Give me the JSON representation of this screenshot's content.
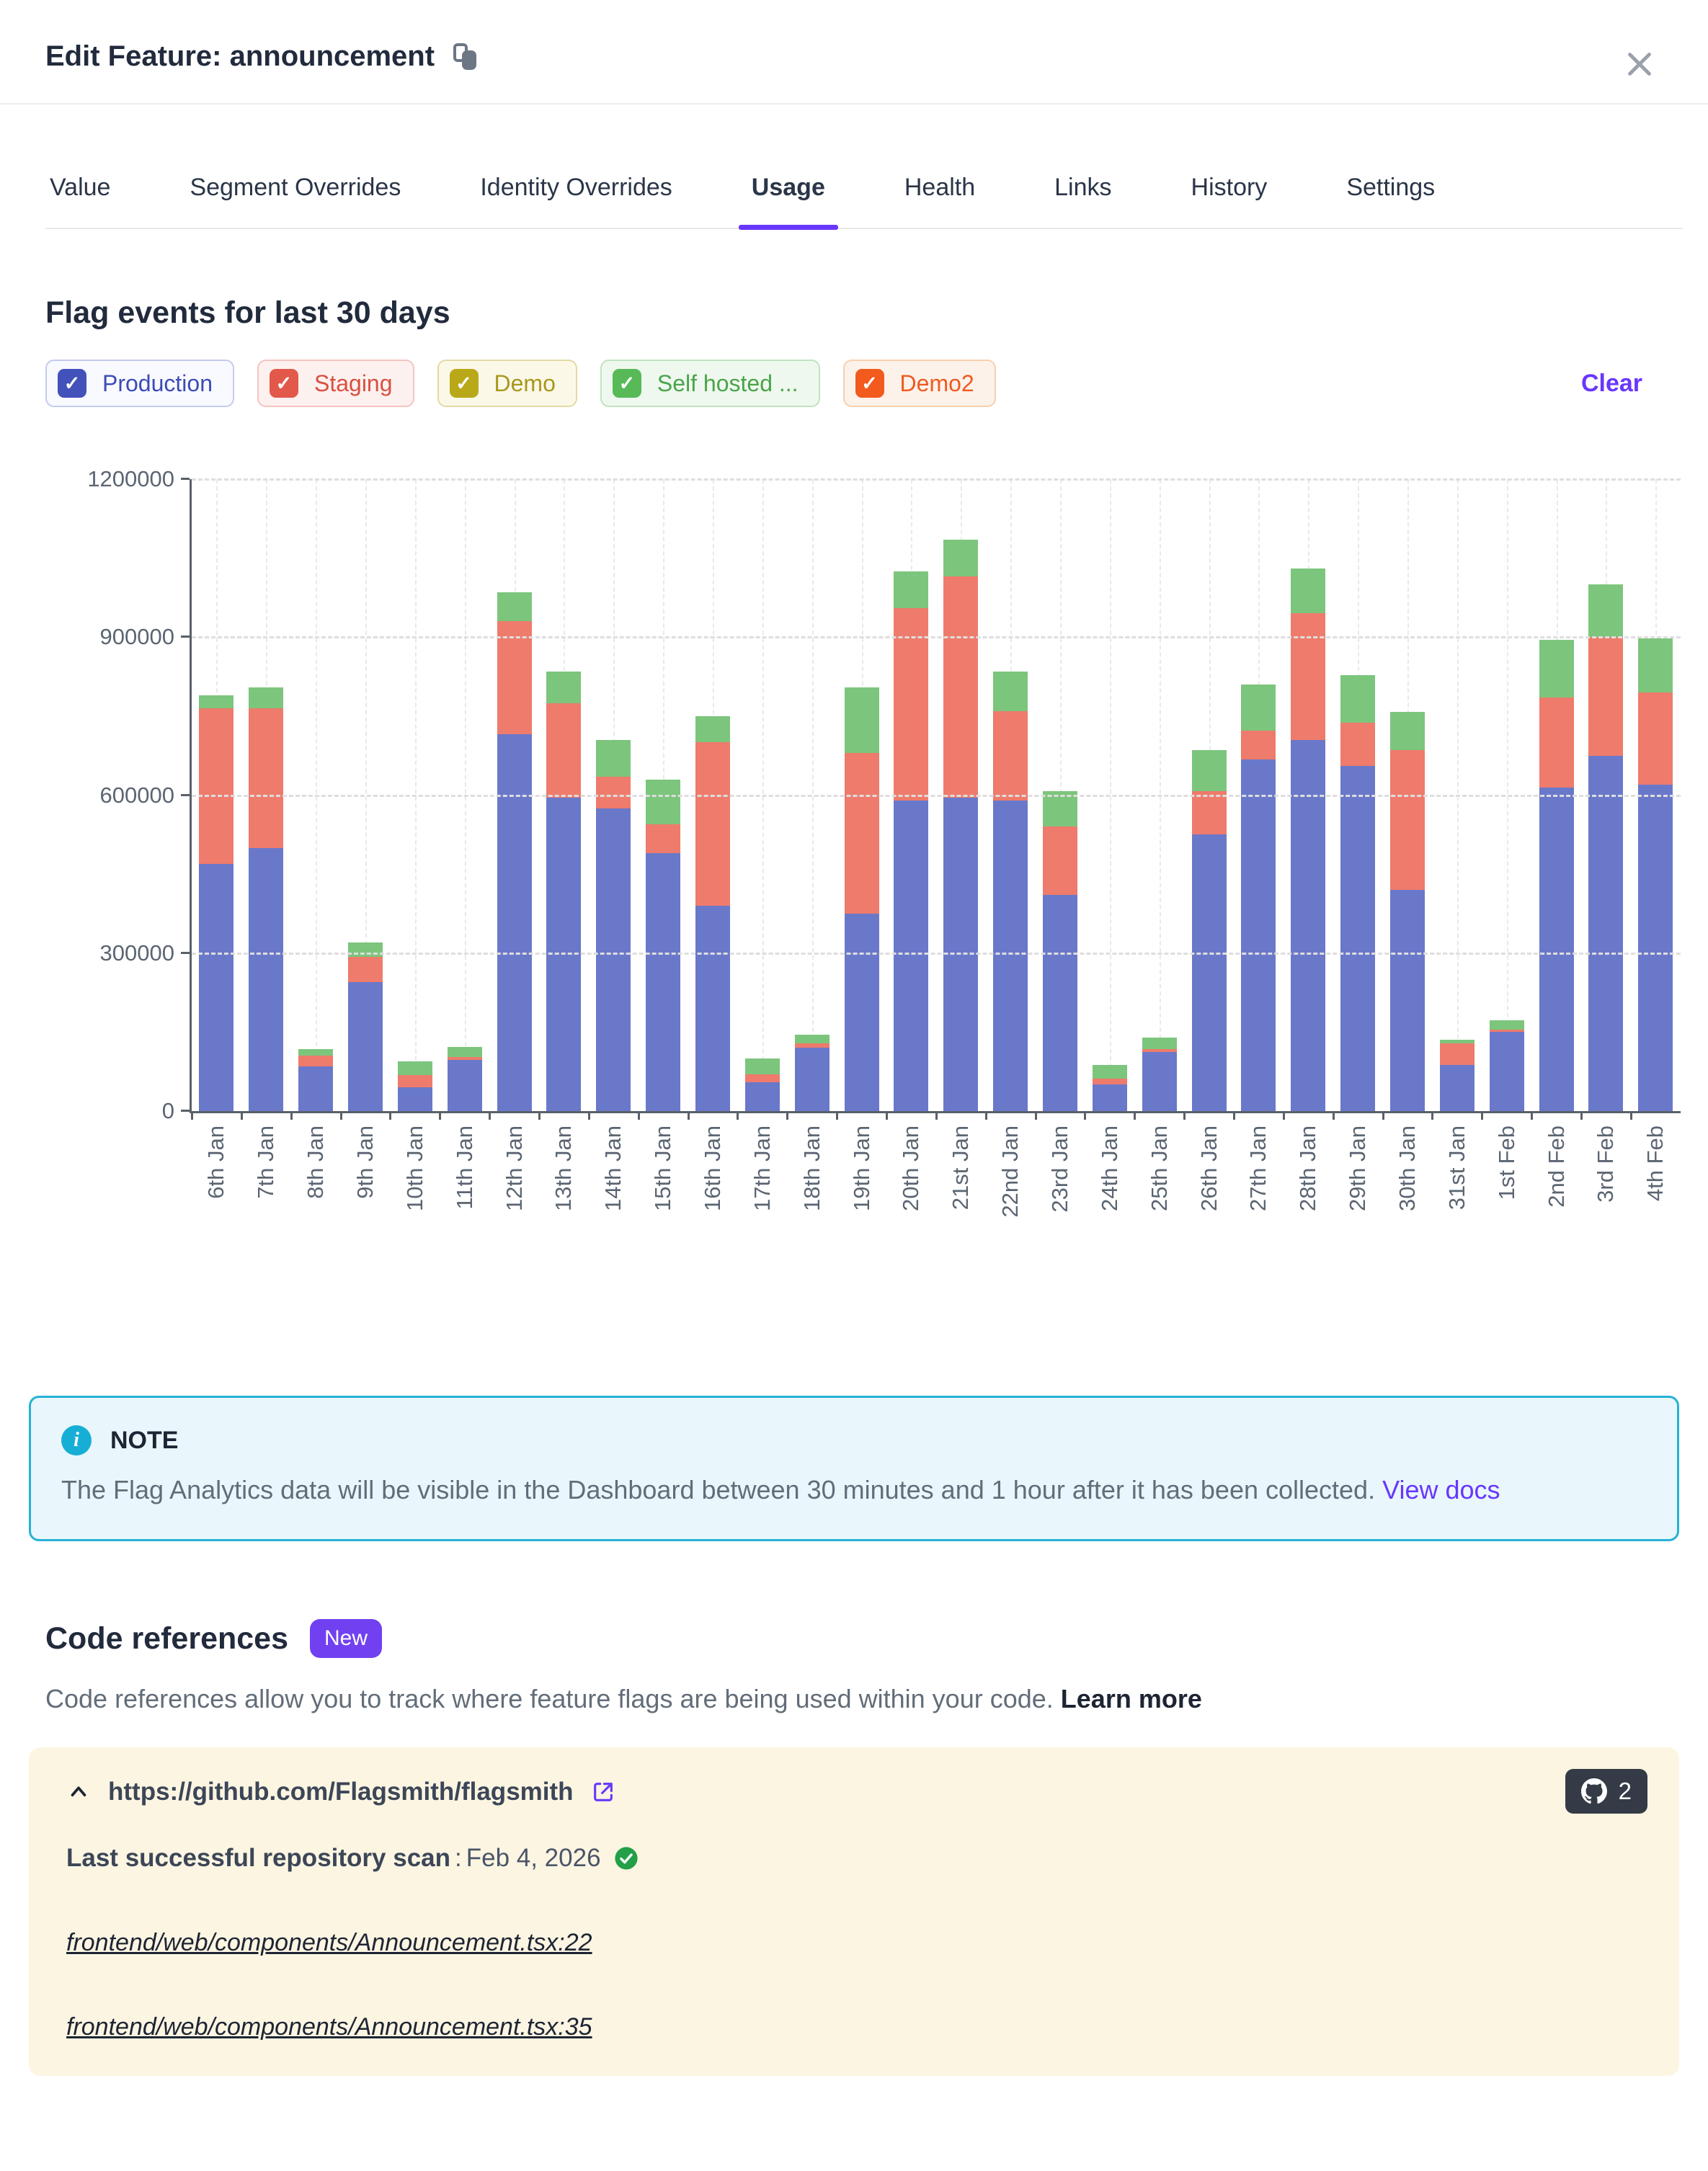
{
  "modal": {
    "title": "Edit Feature: announcement"
  },
  "tabs": {
    "items": [
      {
        "label": "Value",
        "active": false
      },
      {
        "label": "Segment Overrides",
        "active": false
      },
      {
        "label": "Identity Overrides",
        "active": false
      },
      {
        "label": "Usage",
        "active": true
      },
      {
        "label": "Health",
        "active": false
      },
      {
        "label": "Links",
        "active": false
      },
      {
        "label": "History",
        "active": false
      },
      {
        "label": "Settings",
        "active": false
      }
    ]
  },
  "usage": {
    "section_title": "Flag events for last 30 days",
    "clear_label": "Clear",
    "filters": [
      {
        "label": "Production",
        "checked": true,
        "colors": {
          "bg": "#f9faff",
          "border": "#c5cbee",
          "box": "#4252ba",
          "text": "#3c4cb4"
        }
      },
      {
        "label": "Staging",
        "checked": true,
        "colors": {
          "bg": "#fdf1f0",
          "border": "#f4c4bf",
          "box": "#e2594b",
          "text": "#d9503f"
        }
      },
      {
        "label": "Demo",
        "checked": true,
        "colors": {
          "bg": "#fbf8e8",
          "border": "#e4d9a4",
          "box": "#b9a818",
          "text": "#a8981d"
        }
      },
      {
        "label": "Self hosted ...",
        "checked": true,
        "colors": {
          "bg": "#eff8ef",
          "border": "#c0e2c0",
          "box": "#57ba57",
          "text": "#4aa44a"
        }
      },
      {
        "label": "Demo2",
        "checked": true,
        "colors": {
          "bg": "#fdf2ea",
          "border": "#f8cfae",
          "box": "#f25a1e",
          "text": "#ef5a20"
        }
      }
    ]
  },
  "chart_data": {
    "type": "bar",
    "stacked": true,
    "title": "Flag events for last 30 days",
    "xlabel": "",
    "ylabel": "",
    "ylim": [
      0,
      1200000
    ],
    "grid": true,
    "yticks": [
      {
        "value": 0,
        "label": "0"
      },
      {
        "value": 300000,
        "label": "300000"
      },
      {
        "value": 600000,
        "label": "600000"
      },
      {
        "value": 900000,
        "label": "900000"
      },
      {
        "value": 1200000,
        "label": "1200000"
      }
    ],
    "categories": [
      "6th Jan",
      "7th Jan",
      "8th Jan",
      "9th Jan",
      "10th Jan",
      "11th Jan",
      "12th Jan",
      "13th Jan",
      "14th Jan",
      "15th Jan",
      "16th Jan",
      "17th Jan",
      "18th Jan",
      "19th Jan",
      "20th Jan",
      "21st Jan",
      "22nd Jan",
      "23rd Jan",
      "24th Jan",
      "25th Jan",
      "26th Jan",
      "27th Jan",
      "28th Jan",
      "29th Jan",
      "30th Jan",
      "31st Jan",
      "1st Feb",
      "2nd Feb",
      "3rd Feb",
      "4th Feb"
    ],
    "series": [
      {
        "name": "Production",
        "color": "#6a78ca",
        "values": [
          470000,
          500000,
          85000,
          245000,
          45000,
          97000,
          715000,
          595000,
          575000,
          490000,
          390000,
          55000,
          120000,
          375000,
          590000,
          595000,
          590000,
          410000,
          50000,
          112000,
          525000,
          668000,
          705000,
          655000,
          420000,
          88000,
          150000,
          615000,
          675000,
          620000
        ]
      },
      {
        "name": "Staging",
        "color": "#ee7b6b",
        "values": [
          295000,
          265000,
          20000,
          48000,
          23000,
          5000,
          215000,
          180000,
          60000,
          55000,
          310000,
          15000,
          8000,
          305000,
          365000,
          420000,
          170000,
          130000,
          12000,
          6000,
          83000,
          54000,
          240000,
          82000,
          265000,
          40000,
          5000,
          170000,
          225000,
          175000
        ]
      },
      {
        "name": "Self hosted ...",
        "color": "#7cc57c",
        "values": [
          25000,
          40000,
          13000,
          27000,
          27000,
          20000,
          55000,
          60000,
          70000,
          85000,
          50000,
          30000,
          17000,
          125000,
          70000,
          70000,
          75000,
          67000,
          26000,
          22000,
          77000,
          88000,
          85000,
          91000,
          73000,
          8000,
          17000,
          110000,
          100000,
          103000
        ]
      }
    ],
    "legend_position": "top-left-checkbox-filters"
  },
  "note": {
    "title": "NOTE",
    "body": "The Flag Analytics data will be visible in the Dashboard between 30 minutes and 1 hour after it has been collected.",
    "link_label": "View docs"
  },
  "code_references": {
    "title": "Code references",
    "badge": "New",
    "description": "Code references allow you to track where feature flags are being used within your code.",
    "learn_more_label": "Learn more",
    "repo": {
      "url": "https://github.com/Flagsmith/flagsmith",
      "reference_count": "2",
      "last_scan_label": "Last successful repository scan",
      "last_scan_separator": ": ",
      "last_scan_date": "Feb 4, 2026",
      "files": [
        "frontend/web/components/Announcement.tsx:22",
        "frontend/web/components/Announcement.tsx:35"
      ]
    }
  }
}
